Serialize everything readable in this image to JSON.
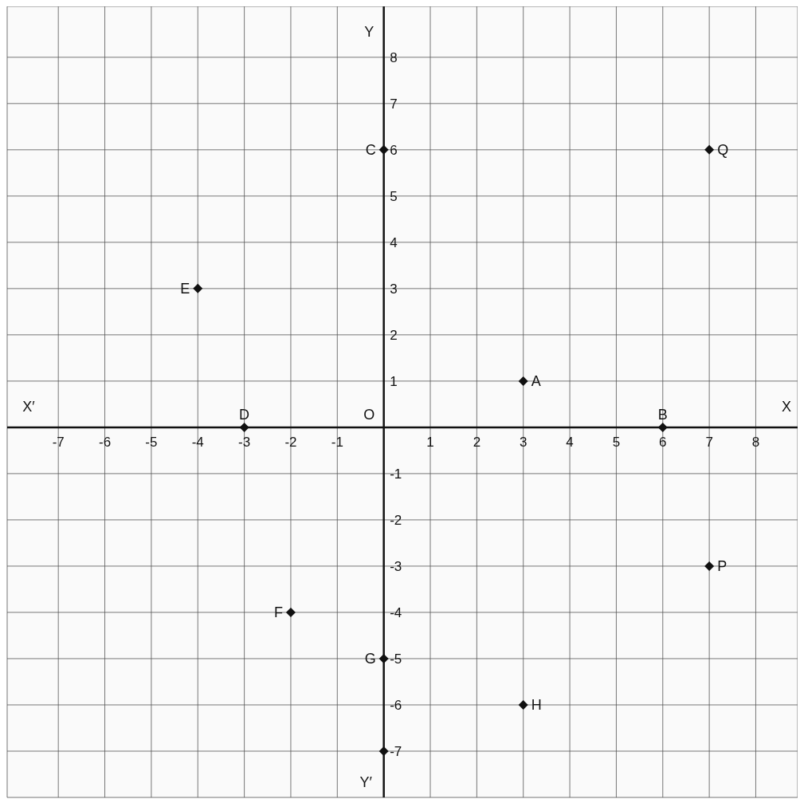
{
  "chart_data": {
    "type": "scatter",
    "x": [
      3,
      6,
      0,
      -3,
      -4,
      -2,
      0,
      3,
      7,
      7,
      0
    ],
    "values": [
      1,
      0,
      6,
      0,
      3,
      -4,
      -5,
      -6,
      -3,
      6,
      -7
    ],
    "color": "#111111",
    "marker": "diamond",
    "xlim": [
      -8.1,
      8.9
    ],
    "ylim": [
      -8,
      9.1
    ],
    "xticks": [
      -7,
      -6,
      -5,
      -4,
      -3,
      -2,
      -1,
      1,
      2,
      3,
      4,
      5,
      6,
      7,
      8
    ],
    "yticks": [
      -7,
      -6,
      -5,
      -4,
      -3,
      -2,
      -1,
      1,
      2,
      3,
      4,
      5,
      6,
      7,
      8
    ],
    "grid": true,
    "annotations": [
      {
        "text": "A",
        "x": 3,
        "y": 1
      },
      {
        "text": "B",
        "x": 6,
        "y": 0
      },
      {
        "text": "C",
        "x": 0,
        "y": 6
      },
      {
        "text": "D",
        "x": -3,
        "y": 0
      },
      {
        "text": "E",
        "x": -4,
        "y": 3
      },
      {
        "text": "F",
        "x": -2,
        "y": -4
      },
      {
        "text": "G",
        "x": 0,
        "y": -5
      },
      {
        "text": "H",
        "x": 3,
        "y": -6
      },
      {
        "text": "P",
        "x": 7,
        "y": -3
      },
      {
        "text": "Q",
        "x": 7,
        "y": 6
      },
      "X",
      "X′",
      "Y",
      "Y′",
      "O"
    ]
  }
}
